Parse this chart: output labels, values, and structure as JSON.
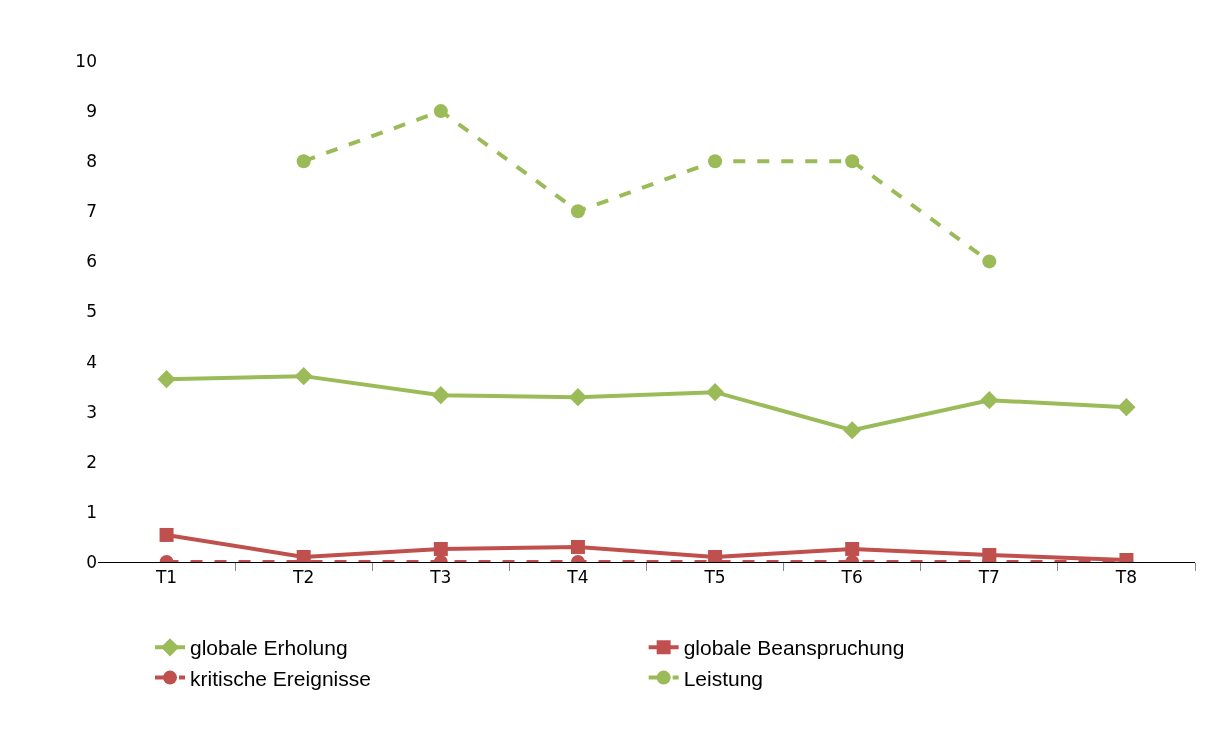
{
  "chart_data": {
    "type": "line",
    "categories": [
      "T1",
      "T2",
      "T3",
      "T4",
      "T5",
      "T6",
      "T7",
      "T8"
    ],
    "series": [
      {
        "name": "globale Erholung",
        "color": "#9bbb59",
        "marker": "diamond",
        "line_style": "solid",
        "values": [
          3.65,
          3.71,
          3.33,
          3.29,
          3.39,
          2.63,
          3.23,
          3.09
        ]
      },
      {
        "name": "globale Beanspruchung",
        "color": "#c0504d",
        "marker": "square",
        "line_style": "solid",
        "values": [
          0.54,
          0.1,
          0.26,
          0.3,
          0.1,
          0.26,
          0.14,
          0.04
        ]
      },
      {
        "name": "kritische Ereignisse",
        "color": "#c0504d",
        "marker": "circle",
        "line_style": "dashed",
        "values": [
          0,
          0,
          0,
          0,
          0,
          0,
          0,
          0
        ]
      },
      {
        "name": "Leistung",
        "color": "#9bbb59",
        "marker": "circle",
        "line_style": "dashed",
        "values": [
          null,
          8,
          9,
          7,
          8,
          8,
          6,
          null
        ]
      }
    ],
    "ylim": [
      0,
      10
    ],
    "yticks": [
      0,
      1,
      2,
      3,
      4,
      5,
      6,
      7,
      8,
      9,
      10
    ],
    "legend": "bottom"
  }
}
